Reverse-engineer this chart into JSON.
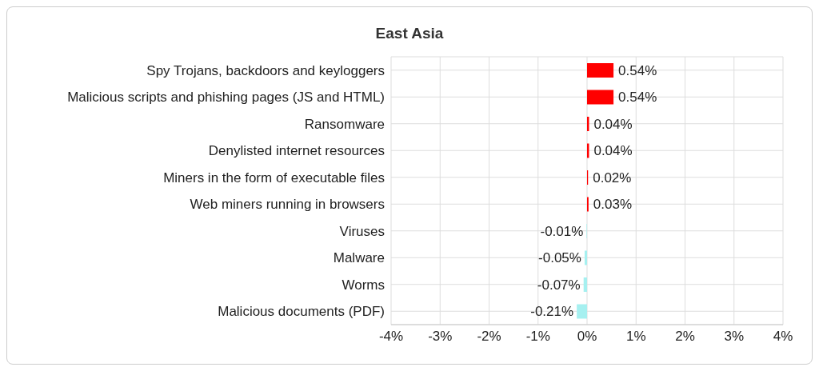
{
  "chart_data": {
    "type": "bar",
    "orientation": "horizontal",
    "title": "East Asia",
    "categories": [
      "Spy Trojans, backdoors and keyloggers",
      "Malicious scripts and phishing pages (JS and HTML)",
      "Ransomware",
      "Denylisted internet resources",
      "Miners in the form of executable files",
      "Web miners running in browsers",
      "Viruses",
      "Malware",
      "Worms",
      "Malicious documents (PDF)"
    ],
    "values": [
      0.54,
      0.54,
      0.04,
      0.04,
      0.02,
      0.03,
      -0.01,
      -0.05,
      -0.07,
      -0.21
    ],
    "colors": [
      "#ff0000",
      "#ff0000",
      "#ff0000",
      "#ff0000",
      "#ff0000",
      "#ff0000",
      "#a6f0f0",
      "#a6f0f0",
      "#a6f0f0",
      "#a6f0f0"
    ],
    "value_labels": [
      "0.54%",
      "0.54%",
      "0.04%",
      "0.04%",
      "0.02%",
      "0.03%",
      "-0.01%",
      "-0.05%",
      "-0.07%",
      "-0.21%"
    ],
    "xlim": [
      -4,
      4
    ],
    "xticks": [
      {
        "value": -4,
        "label": "-4%"
      },
      {
        "value": -3,
        "label": "-3%"
      },
      {
        "value": -2,
        "label": "-2%"
      },
      {
        "value": -1,
        "label": "-1%"
      },
      {
        "value": 0,
        "label": "0%"
      },
      {
        "value": 1,
        "label": "1%"
      },
      {
        "value": 2,
        "label": "2%"
      },
      {
        "value": 3,
        "label": "3%"
      },
      {
        "value": 4,
        "label": "4%"
      }
    ],
    "grid": true,
    "legend": false
  }
}
